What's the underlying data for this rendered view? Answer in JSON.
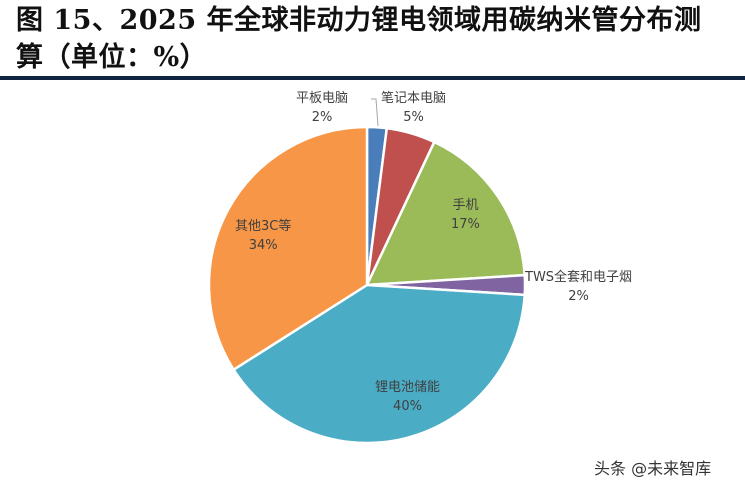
{
  "title": {
    "line1": "图 15、2025 年全球非动力锂电领域用碳纳米管分布测",
    "line2": "算（单位：%）"
  },
  "chart_data": {
    "type": "pie",
    "title": "图 15、2025 年全球非动力锂电领域用碳纳米管分布测算（单位：%）",
    "unit": "%",
    "start_angle": "12 o'clock, clockwise",
    "categories": [
      "平板电脑",
      "笔记本电脑",
      "手机",
      "TWS全套和电子烟",
      "锂电池储能",
      "其他3C等"
    ],
    "values": [
      2,
      5,
      17,
      2,
      40,
      34
    ],
    "colors": [
      "#4a7ebb",
      "#c0504d",
      "#9bbb59",
      "#8064a2",
      "#4bacc6",
      "#f79646"
    ],
    "labels": [
      {
        "name": "平板电脑",
        "pct": "2%"
      },
      {
        "name": "笔记本电脑",
        "pct": "5%"
      },
      {
        "name": "手机",
        "pct": "17%"
      },
      {
        "name": "TWS全套和电子烟",
        "pct": "2%"
      },
      {
        "name": "锂电池储能",
        "pct": "40%"
      },
      {
        "name": "其他3C等",
        "pct": "34%"
      }
    ],
    "legend": "none (data labels on/near slices)"
  },
  "watermark": "头条 @未来智库"
}
